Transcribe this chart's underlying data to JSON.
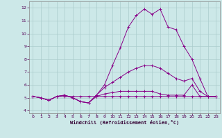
{
  "xlabel": "Windchill (Refroidissement éolien,°C)",
  "background_color": "#cce8e8",
  "grid_color": "#aacccc",
  "line_color": "#880088",
  "xlim": [
    -0.5,
    23.5
  ],
  "ylim": [
    3.8,
    12.5
  ],
  "yticks": [
    4,
    5,
    6,
    7,
    8,
    9,
    10,
    11,
    12
  ],
  "xticks": [
    0,
    1,
    2,
    3,
    4,
    5,
    6,
    7,
    8,
    9,
    10,
    11,
    12,
    13,
    14,
    15,
    16,
    17,
    18,
    19,
    20,
    21,
    22,
    23
  ],
  "x": [
    0,
    1,
    2,
    3,
    4,
    5,
    6,
    7,
    8,
    9,
    10,
    11,
    12,
    13,
    14,
    15,
    16,
    17,
    18,
    19,
    20,
    21,
    22,
    23
  ],
  "line1": [
    5.1,
    5.0,
    4.8,
    5.1,
    5.1,
    5.1,
    5.1,
    5.1,
    5.1,
    5.1,
    5.1,
    5.1,
    5.1,
    5.1,
    5.1,
    5.1,
    5.1,
    5.1,
    5.1,
    5.1,
    5.1,
    5.1,
    5.1,
    5.1
  ],
  "line2": [
    5.1,
    5.0,
    4.8,
    5.1,
    5.2,
    5.0,
    4.7,
    4.6,
    5.1,
    5.3,
    5.4,
    5.5,
    5.5,
    5.5,
    5.5,
    5.5,
    5.3,
    5.2,
    5.2,
    5.2,
    6.0,
    5.1,
    5.1,
    5.1
  ],
  "line3": [
    5.1,
    5.0,
    4.8,
    5.1,
    5.2,
    5.0,
    4.7,
    4.6,
    5.2,
    6.0,
    7.5,
    8.9,
    10.5,
    11.4,
    11.9,
    11.5,
    11.9,
    10.5,
    10.3,
    9.0,
    8.0,
    6.5,
    5.1,
    5.1
  ],
  "line4": [
    5.1,
    5.0,
    4.8,
    5.1,
    5.2,
    5.0,
    4.7,
    4.6,
    5.2,
    5.8,
    6.2,
    6.6,
    7.0,
    7.3,
    7.5,
    7.5,
    7.3,
    6.9,
    6.5,
    6.3,
    6.5,
    5.5,
    5.1,
    5.1
  ]
}
